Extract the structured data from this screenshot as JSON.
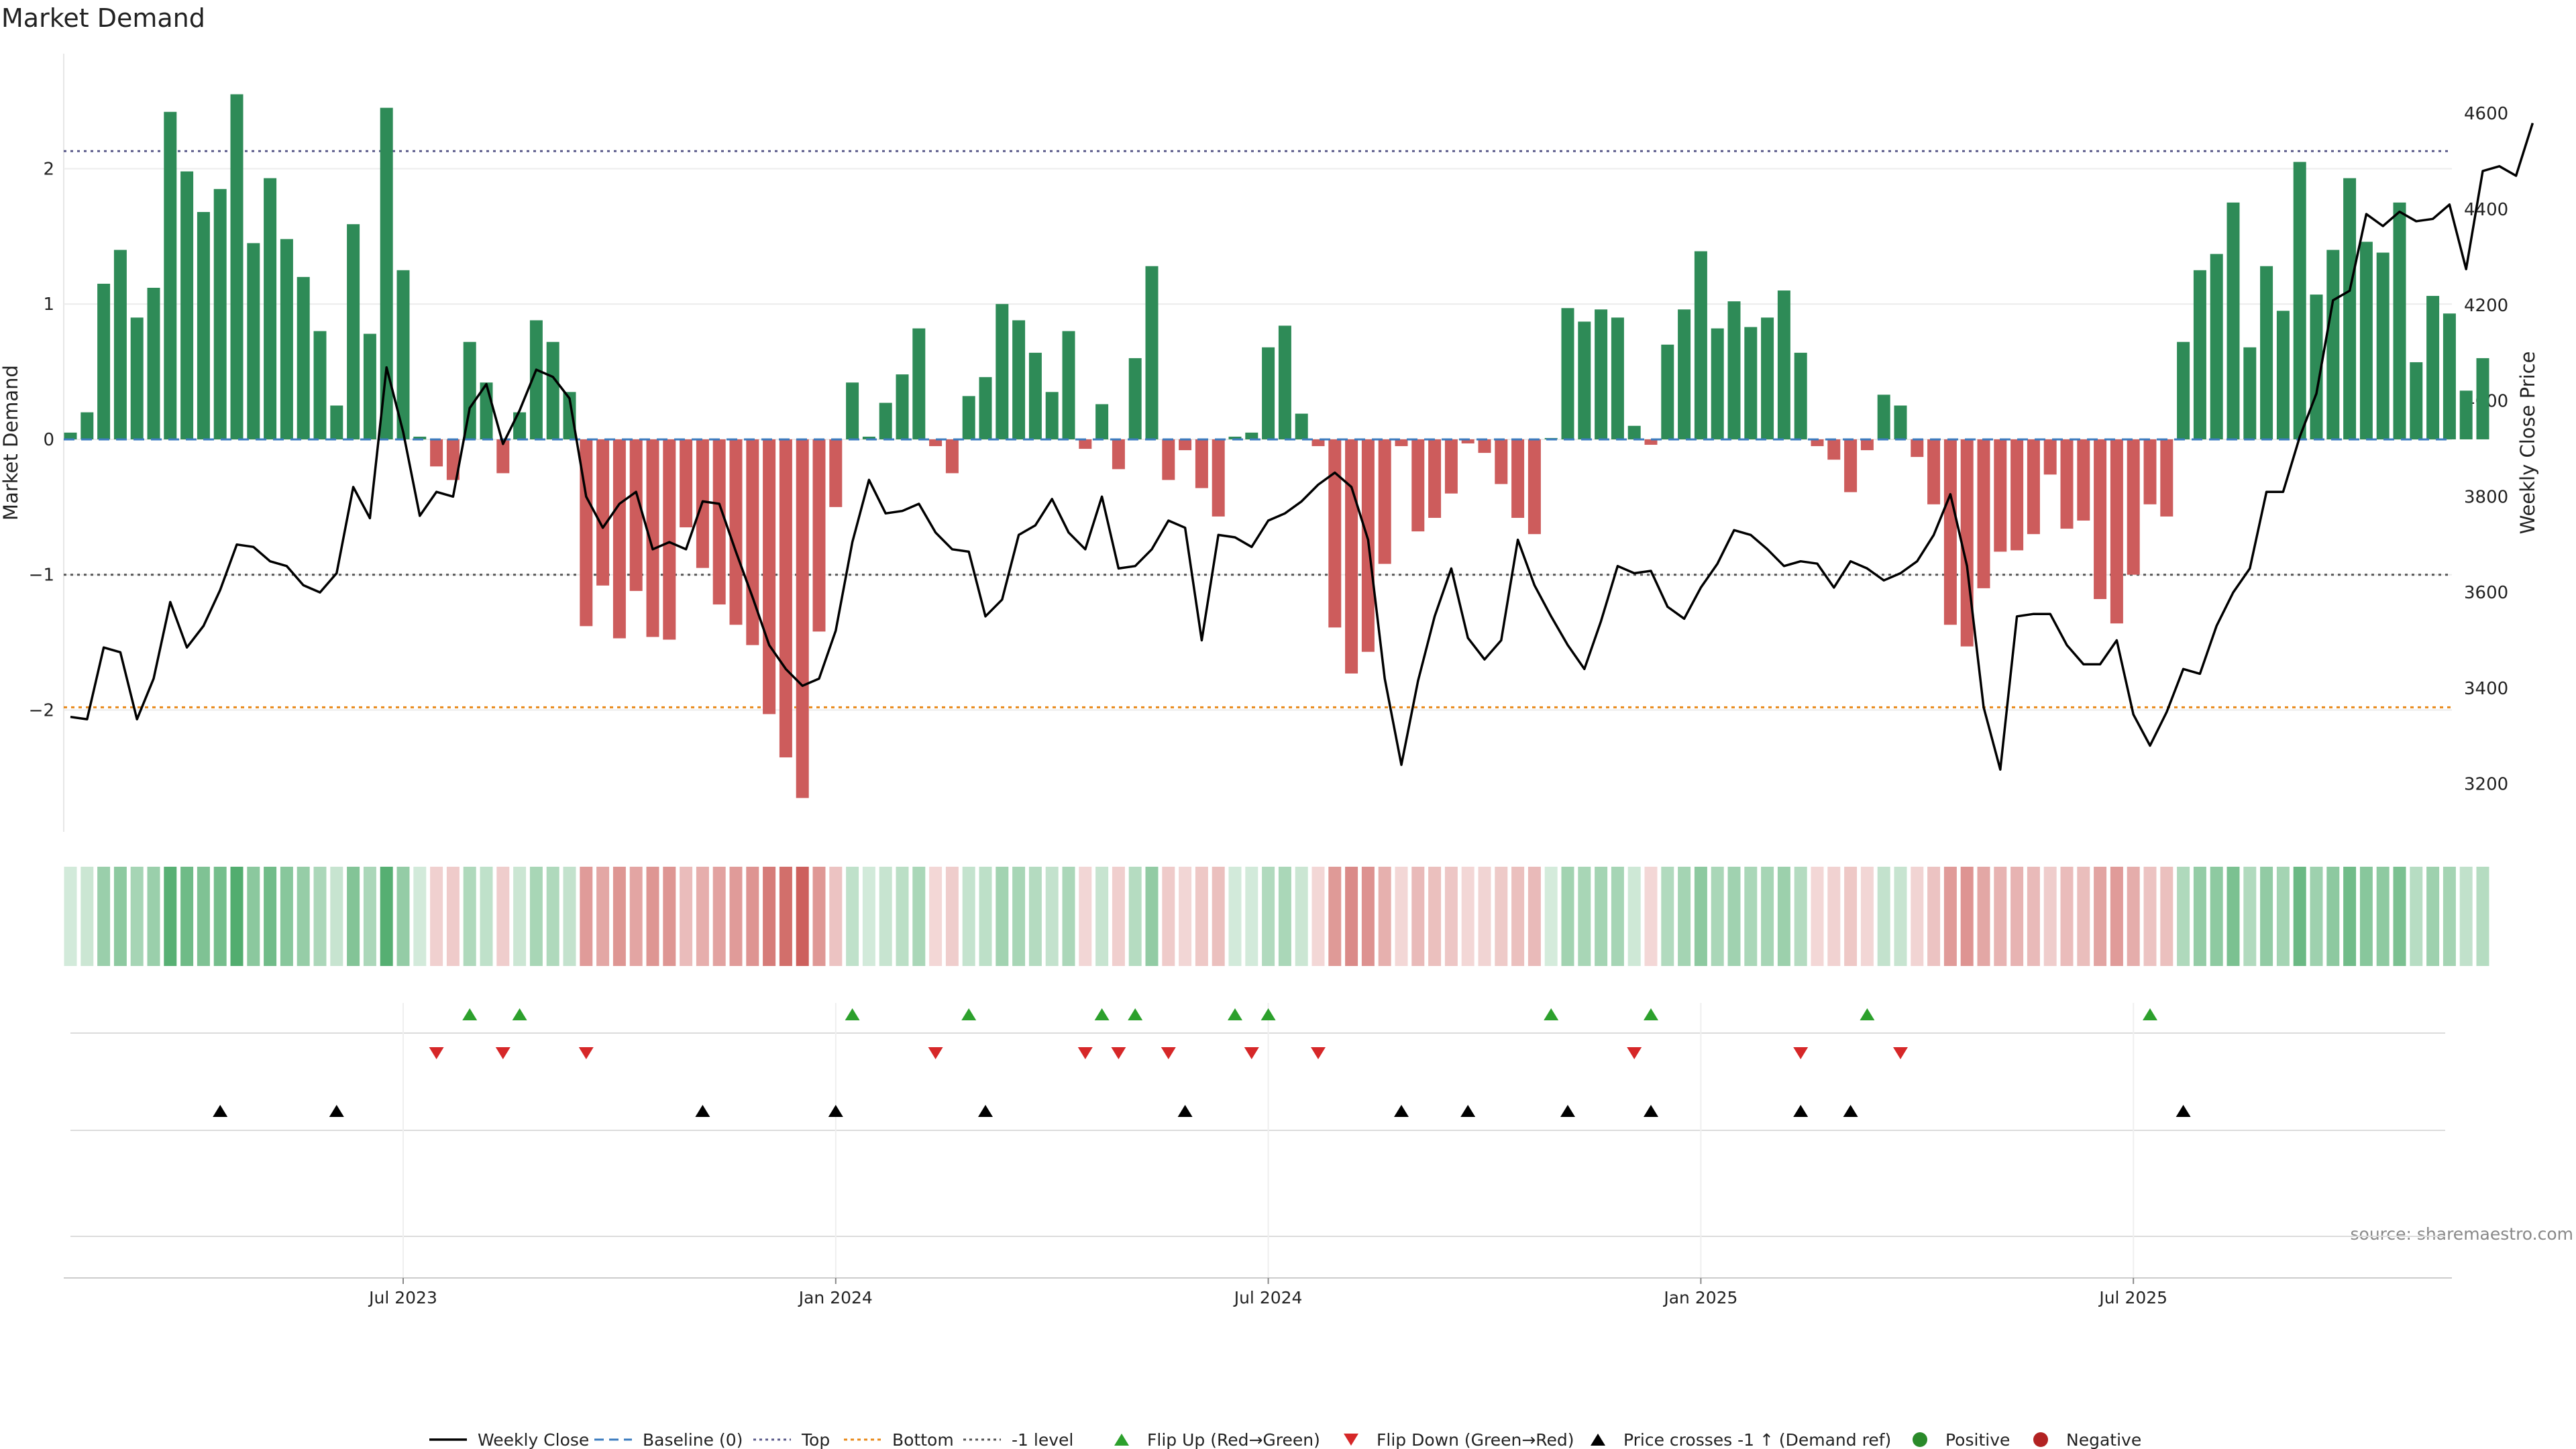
{
  "chart_data": {
    "type": "bar",
    "title": "Market Demand",
    "ylabel_left": "Market Demand",
    "ylabel_right": "Weekly Close Price",
    "source": "source: sharemaestro.com",
    "colors": {
      "positive": "#2e8b57",
      "negative": "#cd5c5c",
      "line": "#000000",
      "top": "#5a5a8a",
      "bottom": "#e8891a",
      "minus1": "#555555",
      "flip_up": "#2ca02c",
      "flip_down": "#d62728",
      "cross": "#000000"
    },
    "left_axis": {
      "min": -2.9,
      "max": 2.85,
      "ticks": [
        -2,
        -1,
        0,
        1,
        2
      ],
      "tick_labels": [
        "−2",
        "−1",
        "0",
        "1",
        "2"
      ]
    },
    "right_axis": {
      "min": 3100,
      "max": 4725,
      "ticks": [
        3200,
        3400,
        3600,
        3800,
        4000,
        4200,
        4400,
        4600
      ],
      "tick_labels": [
        "3200",
        "3400",
        "3600",
        "3800",
        "4000",
        "4200",
        "4400",
        "4600"
      ]
    },
    "levels": {
      "top": 2.13,
      "bottom": -1.98,
      "minus1": -1.0
    },
    "x_ticks": [
      {
        "label": "Jul 2023",
        "week": 20
      },
      {
        "label": "Jan 2024",
        "week": 46
      },
      {
        "label": "Jul 2024",
        "week": 72
      },
      {
        "label": "Jan 2025",
        "week": 98
      },
      {
        "label": "Jul 2025",
        "week": 124
      }
    ],
    "demand": [
      0.05,
      0.2,
      1.15,
      1.4,
      0.9,
      1.12,
      2.42,
      1.98,
      1.68,
      1.85,
      2.55,
      1.45,
      1.93,
      1.48,
      1.2,
      0.8,
      0.25,
      1.59,
      0.78,
      2.45,
      1.25,
      0.02,
      -0.2,
      -0.3,
      0.72,
      0.42,
      -0.25,
      0.2,
      0.88,
      0.72,
      0.35,
      -1.38,
      -1.08,
      -1.47,
      -1.12,
      -1.46,
      -1.48,
      -0.65,
      -0.95,
      -1.22,
      -1.37,
      -1.52,
      -2.03,
      -2.35,
      -2.65,
      -1.42,
      -0.5,
      0.42,
      0.02,
      0.27,
      0.48,
      0.82,
      -0.05,
      -0.25,
      0.32,
      0.46,
      1.0,
      0.88,
      0.64,
      0.35,
      0.8,
      -0.07,
      0.26,
      -0.22,
      0.6,
      1.28,
      -0.3,
      -0.08,
      -0.36,
      -0.57,
      0.02,
      0.05,
      0.68,
      0.84,
      0.19,
      -0.05,
      -1.39,
      -1.73,
      -1.57,
      -0.92,
      -0.05,
      -0.68,
      -0.58,
      -0.4,
      -0.03,
      -0.1,
      -0.33,
      -0.58,
      -0.7,
      0.01,
      0.97,
      0.87,
      0.96,
      0.9,
      0.1,
      -0.04,
      0.7,
      0.96,
      1.39,
      0.82,
      1.02,
      0.83,
      0.9,
      1.1,
      0.64,
      -0.05,
      -0.15,
      -0.39,
      -0.08,
      0.33,
      0.25,
      -0.13,
      -0.48,
      -1.37,
      -1.53,
      -1.1,
      -0.83,
      -0.82,
      -0.7,
      -0.26,
      -0.66,
      -0.6,
      -1.18,
      -1.36,
      -1.0,
      -0.48,
      -0.57,
      0.72,
      1.25,
      1.37,
      1.75,
      0.68,
      1.28,
      0.95,
      2.05,
      1.07,
      1.4,
      1.93,
      1.46,
      1.38,
      1.75,
      0.57,
      1.06,
      0.93,
      0.36,
      0.6
    ],
    "weekly_close": [
      3340,
      3335,
      3485,
      3475,
      3335,
      3420,
      3580,
      3485,
      3530,
      3605,
      3700,
      3695,
      3665,
      3655,
      3615,
      3600,
      3640,
      3820,
      3755,
      4070,
      3935,
      3760,
      3810,
      3800,
      3985,
      4035,
      3910,
      3980,
      4065,
      4050,
      4005,
      3800,
      3735,
      3785,
      3810,
      3690,
      3705,
      3690,
      3790,
      3785,
      3685,
      3590,
      3490,
      3440,
      3405,
      3420,
      3520,
      3705,
      3835,
      3765,
      3770,
      3785,
      3725,
      3690,
      3685,
      3550,
      3585,
      3720,
      3740,
      3795,
      3725,
      3690,
      3800,
      3650,
      3655,
      3690,
      3750,
      3735,
      3500,
      3720,
      3715,
      3695,
      3750,
      3765,
      3790,
      3825,
      3850,
      3820,
      3710,
      3420,
      3240,
      3415,
      3550,
      3650,
      3505,
      3460,
      3500,
      3710,
      3615,
      3550,
      3490,
      3440,
      3540,
      3655,
      3640,
      3645,
      3570,
      3545,
      3610,
      3660,
      3730,
      3720,
      3690,
      3655,
      3665,
      3660,
      3610,
      3665,
      3650,
      3625,
      3640,
      3665,
      3720,
      3805,
      3655,
      3360,
      3230,
      3550,
      3555,
      3555,
      3490,
      3450,
      3450,
      3500,
      3345,
      3280,
      3350,
      3440,
      3430,
      3530,
      3600,
      3650,
      3810,
      3810,
      3925,
      4015,
      4210,
      4230,
      4390,
      4365,
      4395,
      4375,
      4380,
      4410,
      4275,
      4480,
      4490,
      4470,
      4580
    ],
    "flip_up_weeks": [
      24,
      27,
      47,
      54,
      62,
      64,
      70,
      72,
      89,
      95,
      108,
      125
    ],
    "flip_down_weeks": [
      22,
      26,
      31,
      52,
      61,
      63,
      66,
      71,
      75,
      94,
      104,
      110
    ],
    "price_cross_weeks": [
      9,
      16,
      38,
      46,
      55,
      67,
      80,
      84,
      90,
      95,
      104,
      107,
      127
    ],
    "legend": [
      {
        "label": "Weekly Close",
        "symbol": "line"
      },
      {
        "label": "Baseline (0)",
        "symbol": "dash-blue"
      },
      {
        "label": "Top",
        "symbol": "dot-purple"
      },
      {
        "label": "Bottom",
        "symbol": "dot-orange"
      },
      {
        "label": "-1 level",
        "symbol": "dot-gray"
      },
      {
        "label": "Flip Up (Red→Green)",
        "symbol": "tri-up-green"
      },
      {
        "label": "Flip Down (Green→Red)",
        "symbol": "tri-down-red"
      },
      {
        "label": "Price crosses -1 ↑ (Demand ref)",
        "symbol": "tri-up-black"
      },
      {
        "label": "Positive",
        "symbol": "dot-green"
      },
      {
        "label": "Negative",
        "symbol": "dot-red"
      }
    ]
  }
}
